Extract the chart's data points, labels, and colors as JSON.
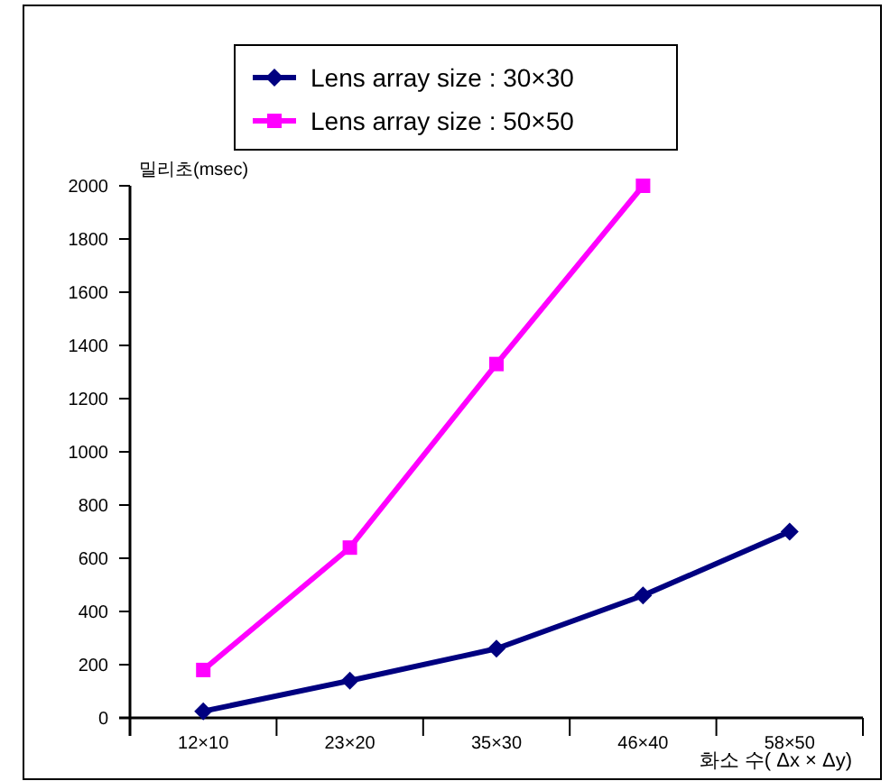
{
  "chart_data": {
    "type": "line",
    "ylabel": "밀리초(msec)",
    "xlabel": "화소 수( Δx × Δy)",
    "categories": [
      "12×10",
      "23×20",
      "35×30",
      "46×40",
      "58×50"
    ],
    "series": [
      {
        "name": "Lens array size : 30×30",
        "color": "#000080",
        "marker": "diamond",
        "values": [
          25,
          140,
          260,
          460,
          700
        ]
      },
      {
        "name": "Lens array size : 50×50",
        "color": "#ff00ff",
        "marker": "square",
        "values": [
          180,
          640,
          1330,
          2000,
          null
        ]
      }
    ],
    "ylim": [
      0,
      2000
    ],
    "yticks": [
      0,
      200,
      400,
      600,
      800,
      1000,
      1200,
      1400,
      1600,
      1800,
      2000
    ],
    "grid": false,
    "legend": "top"
  }
}
